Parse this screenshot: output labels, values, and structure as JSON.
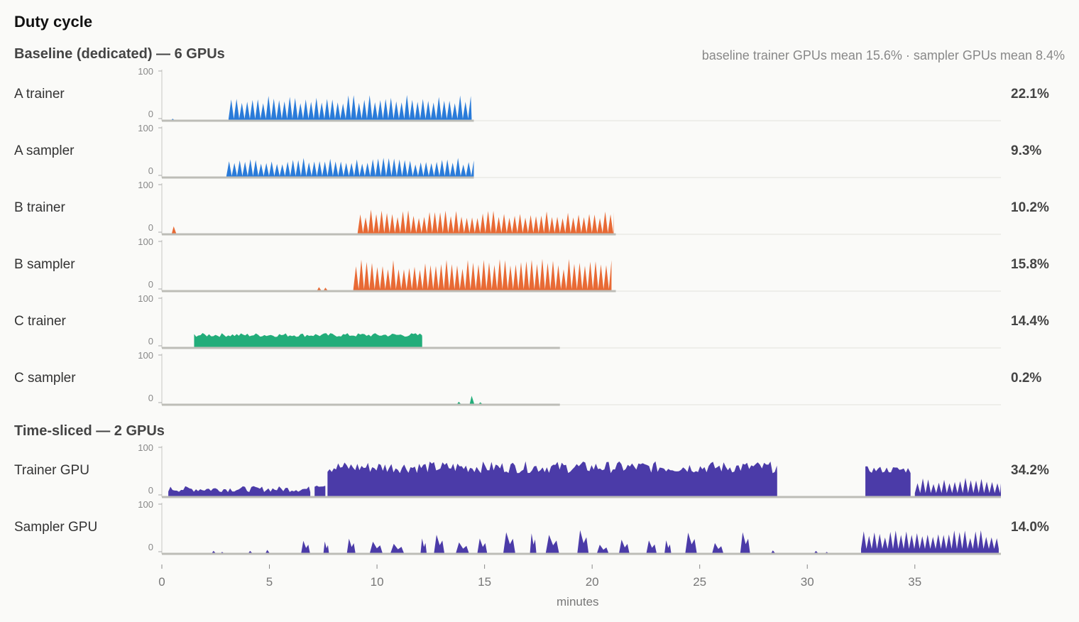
{
  "title": "Duty cycle",
  "sections": [
    {
      "title": "Baseline (dedicated) — 6 GPUs",
      "note": "baseline trainer GPUs mean 15.6% · sampler GPUs mean 8.4%"
    },
    {
      "title": "Time-sliced — 2 GPUs",
      "note": ""
    }
  ],
  "chart_data": {
    "type": "area",
    "xlabel": "minutes",
    "xlim": [
      0,
      39
    ],
    "x_ticks": [
      0,
      5,
      10,
      15,
      20,
      25,
      30,
      35
    ],
    "ylim": [
      0,
      100
    ],
    "y_tick_labels": [
      "0",
      "100"
    ],
    "rows": [
      {
        "label": "A trainer",
        "value": "22.1%",
        "color": "#2a7bd9",
        "axis_end": 14.5,
        "idle_blips": [
          [
            0.5,
            4
          ]
        ],
        "segments": [
          {
            "start": 3.1,
            "end": 14.4,
            "pattern": "spiky",
            "base": 4,
            "peak": 52
          }
        ]
      },
      {
        "label": "A sampler",
        "value": "9.3%",
        "color": "#2a7bd9",
        "axis_end": 14.5,
        "idle_blips": [
          [
            1.8,
            2
          ]
        ],
        "segments": [
          {
            "start": 3.0,
            "end": 14.5,
            "pattern": "spiky",
            "base": 3,
            "peak": 40
          }
        ]
      },
      {
        "label": "B trainer",
        "value": "10.2%",
        "color": "#e86a35",
        "axis_end": 21.1,
        "idle_blips": [
          [
            0.55,
            16
          ]
        ],
        "segments": [
          {
            "start": 9.1,
            "end": 21.0,
            "pattern": "spiky",
            "base": 3,
            "peak": 50
          }
        ]
      },
      {
        "label": "B sampler",
        "value": "15.8%",
        "color": "#e86a35",
        "axis_end": 21.1,
        "idle_blips": [
          [
            7.3,
            8
          ],
          [
            7.6,
            7
          ]
        ],
        "segments": [
          {
            "start": 8.9,
            "end": 20.9,
            "pattern": "spiky",
            "base": 4,
            "peak": 65
          }
        ]
      },
      {
        "label": "C trainer",
        "value": "14.4%",
        "color": "#22ad7a",
        "axis_end": 18.5,
        "idle_blips": [
          [
            1.2,
            2
          ]
        ],
        "segments": [
          {
            "start": 1.5,
            "end": 12.1,
            "pattern": "noisy",
            "base": 22,
            "peak": 30
          }
        ]
      },
      {
        "label": "C sampler",
        "value": "0.2%",
        "color": "#22ad7a",
        "axis_end": 18.5,
        "idle_blips": [
          [
            13.8,
            6
          ],
          [
            14.4,
            18
          ],
          [
            14.8,
            5
          ]
        ],
        "segments": []
      },
      {
        "label": "Trainer GPU",
        "value": "34.2%",
        "color": "#4b3ba8",
        "axis_end": 39,
        "idle_blips": [],
        "segments": [
          {
            "start": 0.3,
            "end": 6.9,
            "pattern": "noisy",
            "base": 10,
            "peak": 22
          },
          {
            "start": 7.1,
            "end": 7.6,
            "pattern": "noisy",
            "base": 20,
            "peak": 28
          },
          {
            "start": 7.7,
            "end": 28.6,
            "pattern": "noisy",
            "base": 48,
            "peak": 72
          },
          {
            "start": 32.7,
            "end": 34.8,
            "pattern": "noisy",
            "base": 48,
            "peak": 62
          },
          {
            "start": 35.0,
            "end": 39.0,
            "pattern": "spiky",
            "base": 8,
            "peak": 40
          }
        ]
      },
      {
        "label": "Sampler GPU",
        "value": "14.0%",
        "color": "#4b3ba8",
        "axis_end": 39,
        "idle_blips": [
          [
            2.4,
            6
          ],
          [
            2.8,
            4
          ],
          [
            4.1,
            6
          ],
          [
            4.9,
            8
          ],
          [
            28.4,
            7
          ],
          [
            30.4,
            6
          ],
          [
            30.9,
            4
          ]
        ],
        "segments": [
          {
            "start": 6.1,
            "end": 28.3,
            "pattern": "bursty",
            "base": 0,
            "peak": 50
          },
          {
            "start": 32.5,
            "end": 38.9,
            "pattern": "spiky",
            "base": 10,
            "peak": 48
          }
        ]
      }
    ]
  }
}
